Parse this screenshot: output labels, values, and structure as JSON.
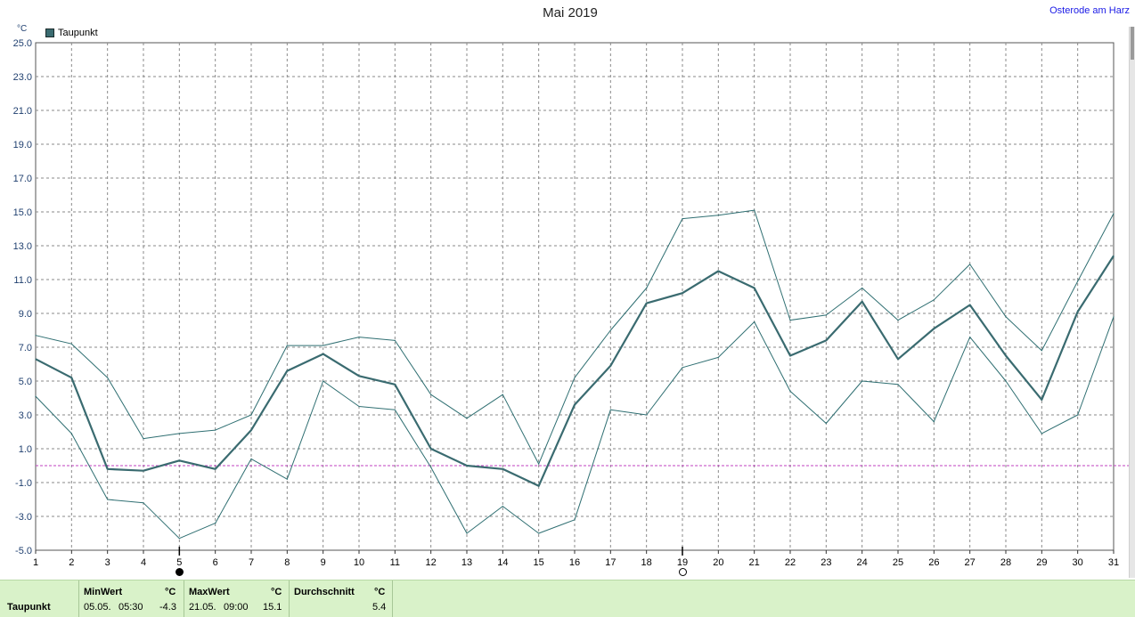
{
  "title": "Mai 2019",
  "location": "Osterode am Harz",
  "unit": "°C",
  "legend": {
    "label": "Taupunkt",
    "color": "#3a6b70"
  },
  "colors": {
    "main": "#3a6b70",
    "band": "#2f6f72",
    "grid": "#8a8a8a",
    "zero_line": "#c040c0",
    "axis_text": "#1f3f6f",
    "footer_bg": "#d9f2c9"
  },
  "chart_data": {
    "type": "line",
    "title": "Mai 2019",
    "ylabel": "°C",
    "x": [
      1,
      2,
      3,
      4,
      5,
      6,
      7,
      8,
      9,
      10,
      11,
      12,
      13,
      14,
      15,
      16,
      17,
      18,
      19,
      20,
      21,
      22,
      23,
      24,
      25,
      26,
      27,
      28,
      29,
      30,
      31
    ],
    "ylim": [
      -5.0,
      25.0
    ],
    "yticks": [
      "25.0",
      "23.0",
      "21.0",
      "19.0",
      "17.0",
      "15.0",
      "13.0",
      "11.0",
      "9.0",
      "7.0",
      "5.0",
      "3.0",
      "1.0",
      "-1.0",
      "-3.0",
      "-5.0"
    ],
    "grid": true,
    "legend_position": "top-left",
    "series": [
      {
        "name": "Taupunkt",
        "role": "mean",
        "values": [
          6.3,
          5.2,
          -0.2,
          -0.3,
          0.3,
          -0.2,
          2.1,
          5.6,
          6.6,
          5.3,
          4.8,
          1.0,
          0.0,
          -0.2,
          -1.2,
          3.6,
          5.9,
          9.6,
          10.2,
          11.5,
          10.5,
          6.5,
          7.4,
          9.7,
          6.3,
          8.1,
          9.5,
          6.5,
          3.9,
          9.1,
          12.4
        ]
      },
      {
        "role": "max",
        "values": [
          7.7,
          7.2,
          5.2,
          1.6,
          1.9,
          2.1,
          3.0,
          7.1,
          7.1,
          7.6,
          7.4,
          4.2,
          2.8,
          4.2,
          0.1,
          5.2,
          8.0,
          10.5,
          14.6,
          14.8,
          15.1,
          8.6,
          8.9,
          10.5,
          8.6,
          9.8,
          11.9,
          8.8,
          6.8,
          10.9,
          14.9
        ]
      },
      {
        "role": "min",
        "values": [
          4.1,
          1.9,
          -2.0,
          -2.2,
          -4.3,
          -3.4,
          0.4,
          -0.8,
          5.0,
          3.5,
          3.3,
          -0.1,
          -4.0,
          -2.4,
          -4.0,
          -3.2,
          3.3,
          3.0,
          5.8,
          6.4,
          8.5,
          4.4,
          2.5,
          5.0,
          4.8,
          2.6,
          7.6,
          5.0,
          1.9,
          3.0,
          8.8
        ]
      }
    ],
    "reference_line": 0.0,
    "moon_phases": [
      {
        "day": 5,
        "phase": "new"
      },
      {
        "day": 19,
        "phase": "full"
      }
    ]
  },
  "footer": {
    "row_label": "Taupunkt",
    "min": {
      "header": "MinWert",
      "unit": "°C",
      "date": "05.05.",
      "time": "05:30",
      "value": "-4.3"
    },
    "max": {
      "header": "MaxWert",
      "unit": "°C",
      "date": "21.05.",
      "time": "09:00",
      "value": "15.1"
    },
    "avg": {
      "header": "Durchschnitt",
      "unit": "°C",
      "value": "5.4"
    }
  },
  "scrollbar": {
    "thumb_start": 0.0,
    "thumb_fraction": 0.06
  }
}
